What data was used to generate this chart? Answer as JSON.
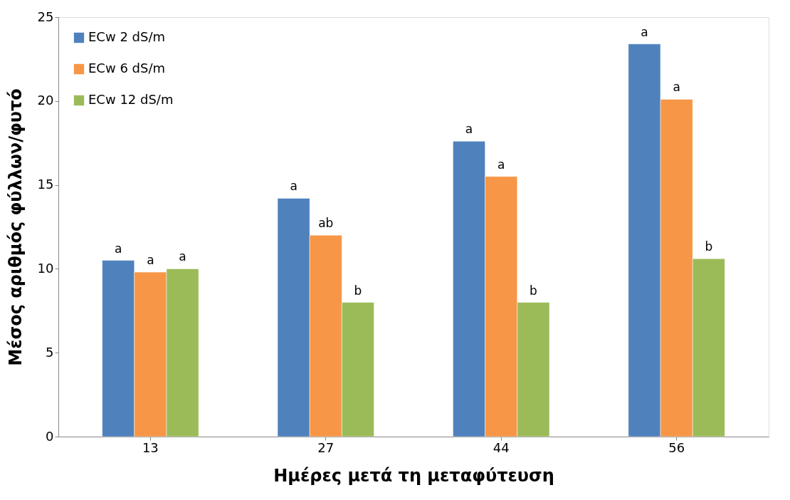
{
  "chart_data": {
    "type": "bar",
    "xlabel": "Ημέρες μετά τη μεταφύτευση",
    "ylabel": "Μέσος αριθμός φύλλων/φυτό",
    "categories": [
      "13",
      "27",
      "44",
      "56"
    ],
    "series": [
      {
        "name": "ECw 2 dS/m",
        "color": "#4f81bd",
        "values": [
          10.5,
          14.2,
          17.6,
          23.4
        ],
        "value_labels": [
          "a",
          "a",
          "a",
          "a"
        ]
      },
      {
        "name": "ECw 6 dS/m",
        "color": "#f79646",
        "values": [
          9.8,
          12.0,
          15.5,
          20.1
        ],
        "value_labels": [
          "a",
          "ab",
          "a",
          "a"
        ]
      },
      {
        "name": "ECw 12 dS/m",
        "color": "#9bbb59",
        "values": [
          10.0,
          8.0,
          8.0,
          10.6
        ],
        "value_labels": [
          "a",
          "b",
          "b",
          "b"
        ]
      }
    ],
    "ylim": [
      0,
      25
    ],
    "yticks": [
      0,
      5,
      10,
      15,
      20,
      25
    ],
    "grid": false,
    "legend": "top left"
  }
}
